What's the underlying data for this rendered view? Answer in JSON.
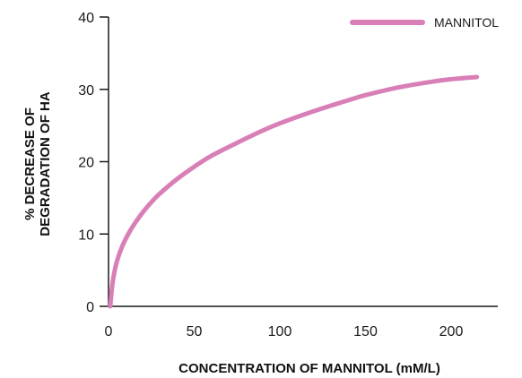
{
  "chart_data": {
    "type": "line",
    "xlabel": "CONCENTRATION OF MANNITOL (mM/L)",
    "ylabel_lines": [
      "% DECREASE OF",
      "DEGRADATION OF HA"
    ],
    "xlim": [
      0,
      220
    ],
    "ylim": [
      0,
      40
    ],
    "x_ticks": [
      0,
      50,
      100,
      150,
      200
    ],
    "y_ticks": [
      0,
      10,
      20,
      30,
      40
    ],
    "x_tick_labels": [
      "0",
      "50",
      "100",
      "150",
      "200"
    ],
    "y_tick_labels": [
      "0",
      "10",
      "20",
      "30",
      "40"
    ],
    "grid": false,
    "legend_position": "top-right",
    "series": [
      {
        "name": "MANNITOL",
        "color": "#d97fb7",
        "x": [
          1,
          2,
          3,
          5,
          8,
          12,
          16,
          20,
          25,
          30,
          40,
          50,
          60,
          75,
          90,
          100,
          120,
          140,
          150,
          170,
          190,
          200,
          215
        ],
        "y": [
          0,
          2.5,
          4.2,
          6.3,
          8.3,
          10.2,
          11.7,
          13.0,
          14.4,
          15.6,
          17.6,
          19.3,
          20.8,
          22.6,
          24.3,
          25.3,
          27.0,
          28.5,
          29.2,
          30.3,
          31.1,
          31.4,
          31.7
        ]
      }
    ]
  }
}
